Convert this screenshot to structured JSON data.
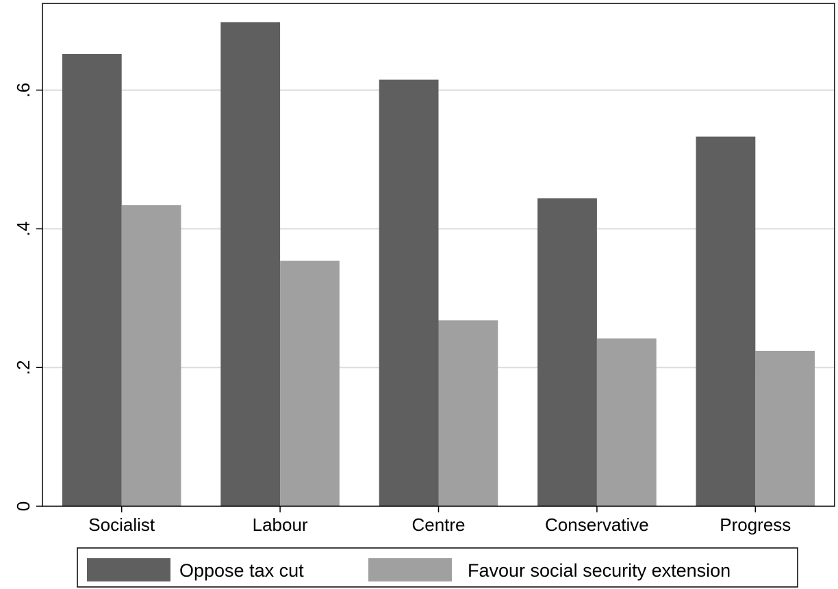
{
  "chart_data": {
    "type": "bar",
    "categories": [
      "Socialist",
      "Labour",
      "Centre",
      "Conservative",
      "Progress"
    ],
    "series": [
      {
        "name": "Oppose tax cut",
        "values": [
          0.652,
          0.698,
          0.615,
          0.444,
          0.533
        ],
        "color": "#5f5f5f"
      },
      {
        "name": "Favour social security extension",
        "values": [
          0.434,
          0.354,
          0.268,
          0.242,
          0.224
        ],
        "color": "#a0a0a0"
      }
    ],
    "title": "",
    "xlabel": "",
    "ylabel": "",
    "ylim": [
      0,
      0.725
    ],
    "yticks": [
      0,
      0.2,
      0.4,
      0.6
    ],
    "ytick_labels": [
      "0",
      ".2",
      ".4",
      ".6"
    ],
    "grid": true,
    "legend_position": "bottom"
  }
}
